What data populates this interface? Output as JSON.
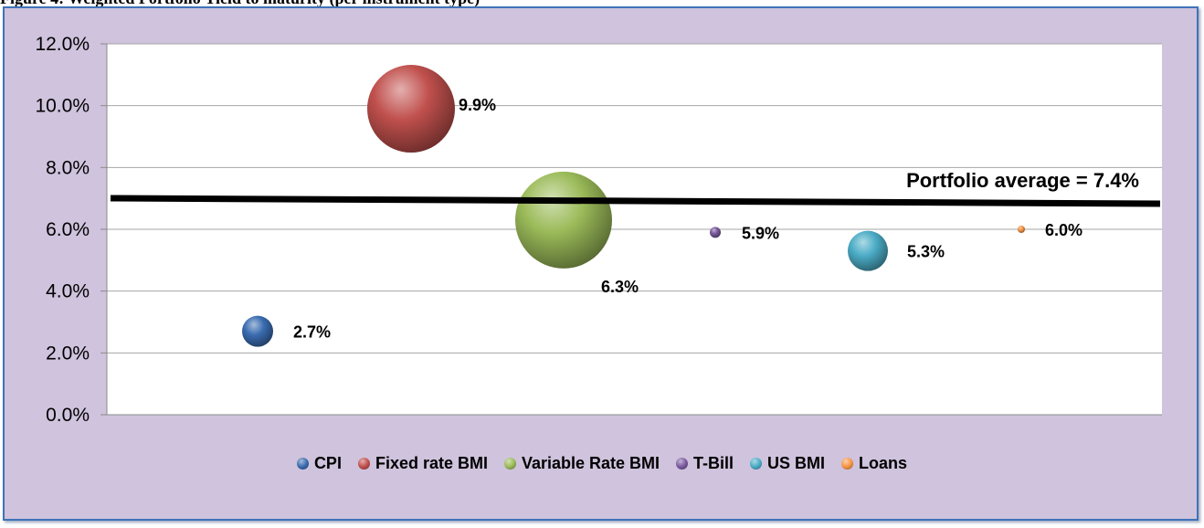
{
  "caption": "Figure 4: Weighted Portfolio Yield to maturity (per instrument type)",
  "chart_data": {
    "type": "scatter",
    "subtype": "bubble",
    "title": "",
    "xlabel": "",
    "ylabel": "",
    "ylim": [
      0,
      12
    ],
    "y_ticks": [
      "0.0%",
      "2.0%",
      "4.0%",
      "6.0%",
      "8.0%",
      "10.0%",
      "12.0%"
    ],
    "grid": true,
    "legend_position": "bottom",
    "series": [
      {
        "name": "CPI",
        "y": 2.7,
        "label": "2.7%",
        "color": "#3a6cb0",
        "size": "small"
      },
      {
        "name": "Fixed rate BMI",
        "y": 9.9,
        "label": "9.9%",
        "color": "#c0504d",
        "size": "large"
      },
      {
        "name": "Variable Rate BMI",
        "y": 6.3,
        "label": "6.3%",
        "color": "#9bbb59",
        "size": "large"
      },
      {
        "name": "T-Bill",
        "y": 5.9,
        "label": "5.9%",
        "color": "#7a5a9e",
        "size": "tiny"
      },
      {
        "name": "US BMI",
        "y": 5.3,
        "label": "5.3%",
        "color": "#4bacc6",
        "size": "medium"
      },
      {
        "name": "Loans",
        "y": 6.0,
        "label": "6.0%",
        "color": "#f79646",
        "size": "tiny"
      }
    ],
    "annotation": {
      "text": "Portfolio average  = 7.4%",
      "value": 7.4
    }
  }
}
